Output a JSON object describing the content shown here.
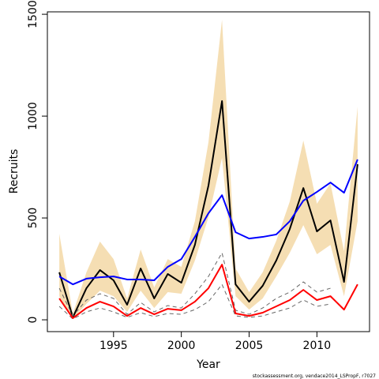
{
  "chart_data": {
    "type": "line",
    "xlabel": "Year",
    "ylabel": "Recruits",
    "footnote": "stockassessment.org, vendace2014_LSPropF, r7027",
    "x": [
      1991,
      1992,
      1993,
      1994,
      1995,
      1996,
      1997,
      1998,
      1999,
      2000,
      2001,
      2002,
      2003,
      2004,
      2005,
      2006,
      2007,
      2008,
      2009,
      2010,
      2011,
      2012,
      2013
    ],
    "xlim": [
      1990.12,
      2013.88
    ],
    "xticks": [
      1995,
      2000,
      2005,
      2010
    ],
    "ylim": [
      -58,
      1512
    ],
    "yticks": [
      0,
      500,
      1000,
      1500
    ],
    "band": {
      "color": "#f5deb3",
      "upper": [
        422,
        31,
        233,
        384,
        298,
        105,
        345,
        159,
        298,
        260,
        484,
        872,
        1473,
        252,
        136,
        233,
        388,
        581,
        880,
        570,
        670,
        337,
        1047
      ],
      "lower": [
        116,
        4,
        78,
        143,
        116,
        39,
        143,
        58,
        136,
        128,
        291,
        504,
        795,
        116,
        50,
        105,
        213,
        329,
        465,
        322,
        368,
        116,
        484
      ]
    },
    "series": [
      {
        "color": "#000000",
        "width": 2,
        "values": [
          233,
          12,
          155,
          244,
          194,
          74,
          252,
          105,
          225,
          182,
          368,
          659,
          1074,
          174,
          89,
          167,
          291,
          446,
          647,
          434,
          488,
          186,
          764
        ]
      },
      {
        "color": "#0000ff",
        "width": 2,
        "values": [
          213,
          174,
          202,
          209,
          213,
          198,
          198,
          194,
          260,
          298,
          407,
          523,
          612,
          430,
          399,
          407,
          419,
          484,
          585,
          628,
          674,
          624,
          787
        ]
      },
      {
        "color": "#666666",
        "width": 1,
        "dash": true,
        "values": [
          155,
          19,
          97,
          128,
          105,
          27,
          85,
          39,
          70,
          58,
          128,
          213,
          329,
          47,
          27,
          58,
          105,
          136,
          186,
          136,
          155,
          null,
          null
        ]
      },
      {
        "color": "#666666",
        "width": 1,
        "dash": true,
        "values": [
          66,
          4,
          39,
          58,
          39,
          12,
          35,
          16,
          31,
          27,
          50,
          89,
          174,
          19,
          12,
          19,
          39,
          58,
          97,
          66,
          78,
          null,
          null
        ]
      },
      {
        "color": "#ff0000",
        "width": 2,
        "values": [
          105,
          8,
          58,
          89,
          66,
          19,
          58,
          27,
          54,
          47,
          89,
          155,
          271,
          31,
          19,
          35,
          66,
          97,
          147,
          97,
          116,
          50,
          174
        ]
      }
    ]
  }
}
